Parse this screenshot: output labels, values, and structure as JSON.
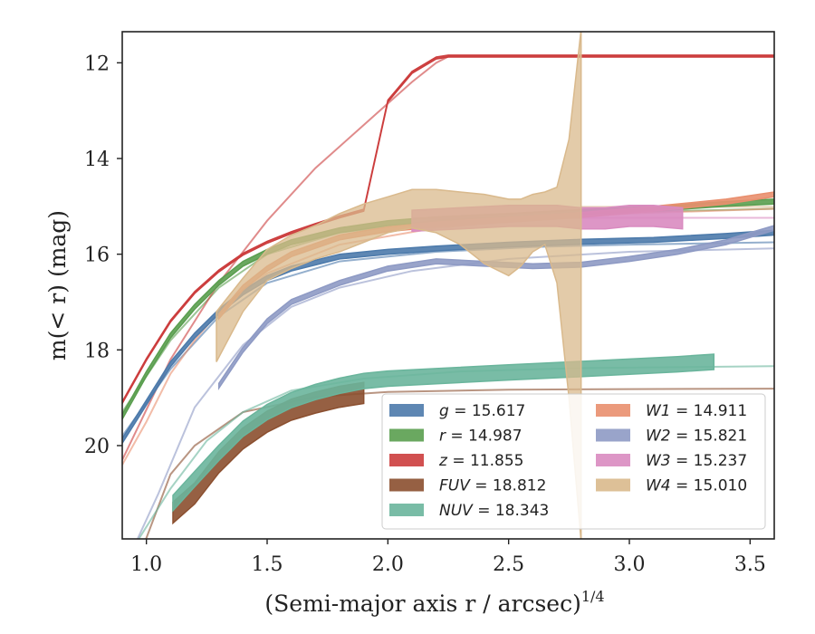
{
  "chart_data": {
    "type": "area",
    "xlabel": "(Semi-major axis r / arcsec)",
    "xlabel_sup": "1/4",
    "ylabel": "m(< r) (mag)",
    "xlim": [
      0.9,
      3.6
    ],
    "ylim": [
      21.95,
      11.35
    ],
    "x_ticks": [
      1.0,
      1.5,
      2.0,
      2.5,
      3.0,
      3.5
    ],
    "x_tick_labels": [
      "1.0",
      "1.5",
      "2.0",
      "2.5",
      "3.0",
      "3.5"
    ],
    "y_ticks": [
      12,
      14,
      16,
      18,
      20
    ],
    "y_tick_labels": [
      "12",
      "14",
      "16",
      "18",
      "20"
    ],
    "y_inverted": true,
    "grid": false,
    "legend_position": "lower-right",
    "series": [
      {
        "band": "g",
        "value": "15.617",
        "color": "#4c7aab",
        "data_x": [
          0.9,
          1.0,
          1.1,
          1.2,
          1.3,
          1.4,
          1.5,
          1.6,
          1.8,
          2.0,
          2.2,
          2.5,
          2.8,
          3.1,
          3.4,
          3.6
        ],
        "data_y": [
          19.9,
          19.1,
          18.3,
          17.7,
          17.2,
          16.8,
          16.5,
          16.3,
          16.05,
          15.95,
          15.88,
          15.8,
          15.74,
          15.7,
          15.62,
          15.55
        ],
        "band_half": 0.05,
        "model_x": [
          0.9,
          1.1,
          1.3,
          1.5,
          1.8,
          2.2,
          2.6,
          3.0,
          3.6
        ],
        "model_y": [
          19.8,
          18.4,
          17.3,
          16.6,
          16.15,
          15.95,
          15.85,
          15.8,
          15.75
        ]
      },
      {
        "band": "r",
        "value": "14.987",
        "color": "#5a9e4f",
        "data_x": [
          0.9,
          1.0,
          1.1,
          1.2,
          1.3,
          1.4,
          1.5,
          1.6,
          1.8,
          2.0,
          2.2,
          2.5,
          2.8,
          3.1,
          3.4,
          3.6
        ],
        "data_y": [
          19.4,
          18.5,
          17.7,
          17.1,
          16.6,
          16.2,
          15.95,
          15.75,
          15.5,
          15.35,
          15.27,
          15.2,
          15.12,
          15.05,
          14.95,
          14.9
        ],
        "band_half": 0.05,
        "model_x": [
          0.9,
          1.1,
          1.3,
          1.5,
          1.8,
          2.2,
          2.6,
          3.0,
          3.6
        ],
        "model_y": [
          19.3,
          17.8,
          16.7,
          16.0,
          15.55,
          15.3,
          15.2,
          15.12,
          15.05
        ]
      },
      {
        "band": "z",
        "value": "11.855",
        "color": "#cc3d3d",
        "data_x": [
          0.9,
          1.0,
          1.1,
          1.2,
          1.3,
          1.4,
          1.5,
          1.6,
          1.7,
          1.8,
          1.9,
          2.0,
          2.1,
          2.2,
          2.25,
          2.5,
          3.0,
          3.6
        ],
        "data_y": [
          19.1,
          18.2,
          17.4,
          16.8,
          16.35,
          16.0,
          15.75,
          15.55,
          15.38,
          15.22,
          15.08,
          12.8,
          12.2,
          11.9,
          11.86,
          11.86,
          11.86,
          11.86
        ],
        "band_half": 0.02,
        "model_x": [
          0.9,
          1.1,
          1.3,
          1.5,
          1.7,
          1.9,
          2.0,
          2.1,
          2.2,
          2.25,
          2.6,
          3.0,
          3.6
        ],
        "model_y": [
          20.3,
          18.2,
          16.6,
          15.3,
          14.2,
          13.3,
          12.85,
          12.4,
          12.0,
          11.87,
          11.86,
          11.86,
          11.86
        ]
      },
      {
        "band": "FUV",
        "value": "18.812",
        "color": "#8b4f2f",
        "data_x": [
          1.11,
          1.2,
          1.3,
          1.4,
          1.5,
          1.6,
          1.7,
          1.8,
          1.9
        ],
        "data_y": [
          21.4,
          21.0,
          20.35,
          19.85,
          19.5,
          19.25,
          19.1,
          18.98,
          18.9
        ],
        "band_half": 0.22,
        "model_x": [
          0.98,
          1.1,
          1.2,
          1.4,
          1.7,
          2.0,
          2.5,
          3.0,
          3.6
        ],
        "model_y": [
          22.2,
          20.6,
          20.0,
          19.3,
          18.98,
          18.88,
          18.83,
          18.82,
          18.81
        ]
      },
      {
        "band": "NUV",
        "value": "18.343",
        "color": "#6ab59c",
        "data_x": [
          1.11,
          1.2,
          1.3,
          1.4,
          1.5,
          1.6,
          1.7,
          1.8,
          1.9,
          2.0,
          2.2,
          2.5,
          2.8,
          3.0,
          3.2,
          3.35
        ],
        "data_y": [
          21.2,
          20.7,
          20.15,
          19.65,
          19.3,
          19.05,
          18.88,
          18.75,
          18.65,
          18.6,
          18.55,
          18.47,
          18.4,
          18.35,
          18.3,
          18.25
        ],
        "band_half": 0.16,
        "model_x": [
          0.95,
          1.1,
          1.25,
          1.4,
          1.6,
          1.9,
          2.3,
          2.8,
          3.6
        ],
        "model_y": [
          22.1,
          20.9,
          19.9,
          19.3,
          18.85,
          18.6,
          18.45,
          18.38,
          18.34
        ]
      },
      {
        "band": "W1",
        "value": "14.911",
        "color": "#e98f6e",
        "data_x": [
          1.3,
          1.4,
          1.5,
          1.6,
          1.8,
          2.0,
          2.2,
          2.5,
          2.8,
          3.1,
          3.4,
          3.6
        ],
        "data_y": [
          17.3,
          16.7,
          16.3,
          16.0,
          15.65,
          15.48,
          15.38,
          15.28,
          15.18,
          15.05,
          14.9,
          14.75
        ],
        "band_half": 0.05,
        "model_x": [
          0.9,
          1.0,
          1.1,
          1.2,
          1.3,
          1.5,
          1.8,
          2.2,
          2.6,
          3.0,
          3.6
        ],
        "model_y": [
          20.4,
          19.5,
          18.5,
          17.8,
          17.2,
          16.4,
          15.8,
          15.45,
          15.27,
          15.15,
          15.05
        ]
      },
      {
        "band": "W2",
        "value": "15.821",
        "color": "#8e9ac4",
        "data_x": [
          1.3,
          1.4,
          1.5,
          1.6,
          1.8,
          2.0,
          2.2,
          2.4,
          2.6,
          2.8,
          3.0,
          3.2,
          3.4,
          3.5,
          3.6
        ],
        "data_y": [
          18.75,
          18.0,
          17.4,
          17.0,
          16.6,
          16.3,
          16.15,
          16.2,
          16.25,
          16.22,
          16.1,
          15.95,
          15.75,
          15.6,
          15.45
        ],
        "band_half": 0.05,
        "model_x": [
          0.95,
          1.05,
          1.2,
          1.4,
          1.6,
          1.8,
          2.1,
          2.5,
          3.0,
          3.6
        ],
        "model_y": [
          22.1,
          21.0,
          19.2,
          17.9,
          17.1,
          16.7,
          16.35,
          16.1,
          15.95,
          15.88
        ]
      },
      {
        "band": "W3",
        "value": "15.237",
        "color": "#d98bc0",
        "data_x": [
          2.1,
          2.3,
          2.5,
          2.7,
          2.8,
          2.9,
          3.0,
          3.1,
          3.22
        ],
        "data_y": [
          15.3,
          15.25,
          15.2,
          15.2,
          15.25,
          15.25,
          15.2,
          15.2,
          15.25
        ],
        "band_half": 0.22,
        "model_x": [
          2.1,
          2.5,
          3.0,
          3.6
        ],
        "model_y": [
          15.24,
          15.24,
          15.24,
          15.24
        ]
      },
      {
        "band": "W4",
        "value": "15.010",
        "color": "#d9b98c",
        "data_x": [
          1.29,
          1.4,
          1.5,
          1.6,
          1.7,
          1.8,
          1.9,
          2.0,
          2.1,
          2.2,
          2.3,
          2.4,
          2.5,
          2.55,
          2.6,
          2.65,
          2.7,
          2.75,
          2.8
        ],
        "data_y": [
          17.7,
          16.8,
          16.25,
          16.0,
          15.8,
          15.6,
          15.4,
          15.2,
          15.05,
          15.1,
          15.3,
          15.6,
          16.0,
          16.1,
          15.8,
          15.5,
          15.3,
          14.9,
          14.5
        ],
        "data_hi": [
          17.2,
          16.5,
          15.9,
          15.6,
          15.4,
          15.15,
          14.95,
          14.8,
          14.65,
          14.65,
          14.7,
          14.75,
          14.85,
          14.85,
          14.75,
          14.7,
          14.6,
          13.6,
          11.3
        ],
        "data_lo": [
          18.25,
          17.2,
          16.55,
          16.3,
          16.1,
          15.95,
          15.75,
          15.55,
          15.45,
          15.55,
          15.8,
          16.2,
          16.45,
          16.25,
          15.95,
          15.8,
          16.6,
          19.0,
          22.0
        ],
        "model_x": [
          2.8,
          3.0,
          3.3,
          3.6
        ],
        "model_y": [
          15.01,
          15.01,
          15.01,
          15.01
        ]
      }
    ],
    "legend": [
      {
        "name": "g",
        "value": "15.617"
      },
      {
        "name": "r",
        "value": "14.987"
      },
      {
        "name": "z",
        "value": "11.855"
      },
      {
        "name": "FUV",
        "value": "18.812"
      },
      {
        "name": "NUV",
        "value": "18.343"
      },
      {
        "name": "W1",
        "value": "14.911"
      },
      {
        "name": "W2",
        "value": "15.821"
      },
      {
        "name": "W3",
        "value": "15.237"
      },
      {
        "name": "W4",
        "value": "15.010"
      }
    ]
  }
}
